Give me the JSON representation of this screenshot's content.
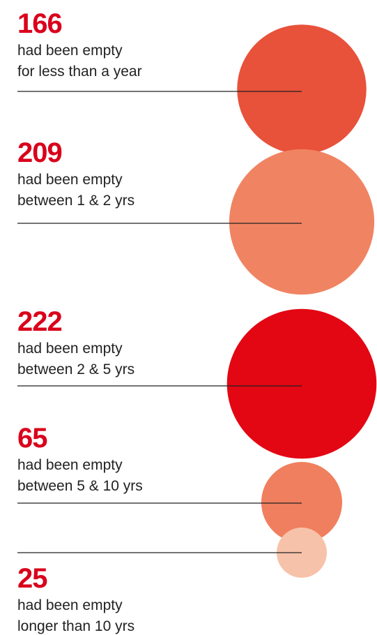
{
  "chart_data": {
    "type": "bubble",
    "categories": [
      [
        "had been empty",
        "for less than a year"
      ],
      [
        "had been empty",
        "between 1 & 2 yrs"
      ],
      [
        "had been empty",
        "between 2 & 5 yrs"
      ],
      [
        "had been empty",
        "between 5 & 10 yrs"
      ],
      [
        "had been empty",
        "longer than 10 yrs"
      ]
    ],
    "values": [
      166,
      209,
      222,
      65,
      25
    ],
    "colors": [
      "#e8513a",
      "#f08462",
      "#e30613",
      "#ef7f5e",
      "#f7c2aa"
    ]
  }
}
